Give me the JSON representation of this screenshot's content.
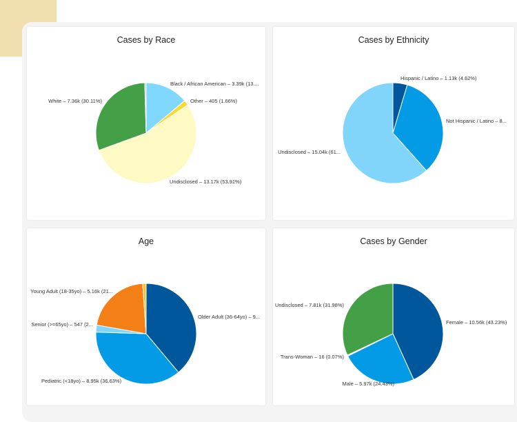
{
  "chart_data": [
    {
      "type": "pie",
      "title": "Cases by Race",
      "slices": [
        {
          "label": "Black / African American – 3.39k (13....",
          "value": 13.88,
          "color": "#80d8ff"
        },
        {
          "label": "Other – 405 (1.66%)",
          "value": 1.66,
          "color": "#fdd835"
        },
        {
          "label": "Undisclosed – 13.17k (53.91%)",
          "value": 53.91,
          "color": "#fff9c4"
        },
        {
          "label": "White – 7.36k (30.11%)",
          "value": 30.11,
          "color": "#43a047"
        },
        {
          "label": "",
          "value": 0.44,
          "color": "#b0bec5"
        }
      ]
    },
    {
      "type": "pie",
      "title": "Cases by Ethnicity",
      "slices": [
        {
          "label": "Hispanic / Latino – 1.13k (4.62%)",
          "value": 4.62,
          "color": "#01579b"
        },
        {
          "label": "Not Hispanic / Latino – 8...",
          "value": 33.78,
          "color": "#039be5"
        },
        {
          "label": "Undisclosed – 15.04k (61...",
          "value": 61.6,
          "color": "#81d4fa"
        }
      ]
    },
    {
      "type": "pie",
      "title": "Age",
      "slices": [
        {
          "label": "Older Adult (36-64yo) – 9...",
          "value": 38.9,
          "color": "#01579b"
        },
        {
          "label": "Pediatric (<18yo) – 8.95k (36.63%)",
          "value": 36.63,
          "color": "#039be5"
        },
        {
          "label": "Senior (>=65yo) – 547 (2...",
          "value": 2.24,
          "color": "#81d4fa"
        },
        {
          "label": "Young Adult (18-35yo) – 5.16k (21...",
          "value": 21.12,
          "color": "#f57f17"
        },
        {
          "label": "",
          "value": 1.11,
          "color": "#fbc02d"
        }
      ]
    },
    {
      "type": "pie",
      "title": "Cases by Gender",
      "slices": [
        {
          "label": "Female – 10.56k (43.23%)",
          "value": 43.23,
          "color": "#01579b"
        },
        {
          "label": "Male – 5.97k (24.43%)",
          "value": 24.43,
          "color": "#039be5"
        },
        {
          "label": "Trans-Woman – 16 (0.07%)",
          "value": 0.07,
          "color": "#81d4fa"
        },
        {
          "label": "",
          "value": 0.29,
          "color": "#b3e5fc"
        },
        {
          "label": "Undisclosed – 7.81k (31.98%)",
          "value": 31.98,
          "color": "#43a047"
        }
      ]
    }
  ]
}
